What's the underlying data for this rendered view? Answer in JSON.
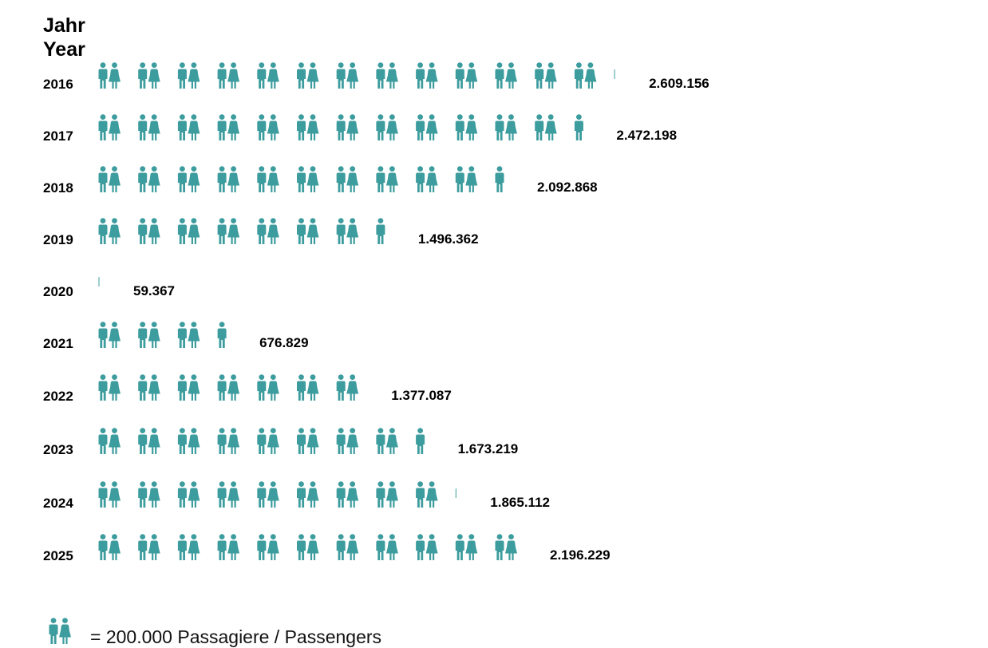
{
  "header": {
    "line1": "Jahr",
    "line2": "Year"
  },
  "legend": {
    "text": "= 200.000 Passagiere / Passengers",
    "icon": "couple-icon"
  },
  "colors": {
    "icon": "#3d9c9e",
    "text": "#000000"
  },
  "chart_data": {
    "type": "pictograph",
    "unit_per_icon": 200000,
    "categories": [
      "2016",
      "2017",
      "2018",
      "2019",
      "2020",
      "2021",
      "2022",
      "2023",
      "2024",
      "2025"
    ],
    "values": [
      2609156,
      2472198,
      2092868,
      1496362,
      59367,
      676829,
      1377087,
      1673219,
      1865112,
      2196229
    ],
    "value_labels": [
      "2.609.156",
      "2.472.198",
      "2.092.868",
      "1.496.362",
      "59.367",
      "676.829",
      "1.377.087",
      "1.673.219",
      "1.865.112",
      "2.196.229"
    ],
    "ylabel": "Jahr / Year"
  }
}
